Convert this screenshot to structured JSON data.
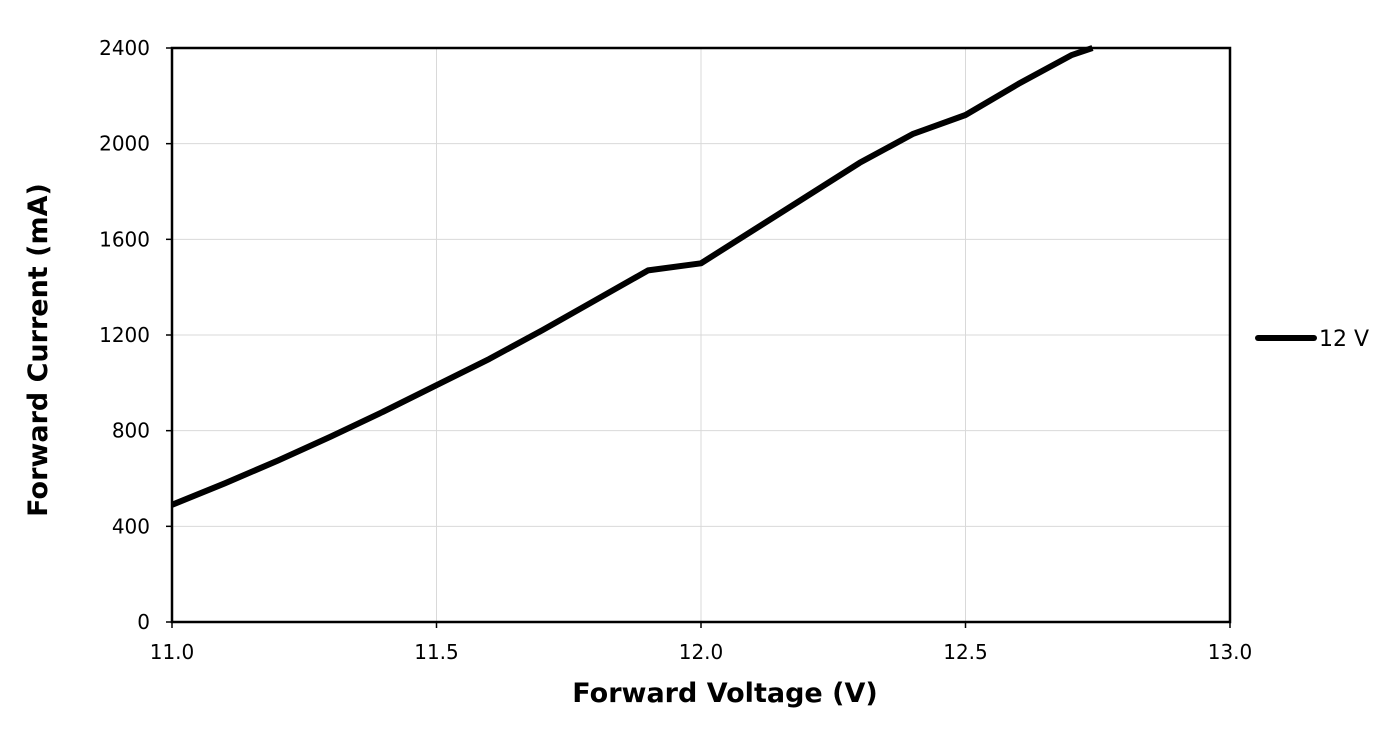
{
  "chart_data": {
    "type": "line",
    "title": "",
    "xlabel": "Forward Voltage (V)",
    "ylabel": "Forward Current (mA)",
    "xlim": [
      11.0,
      13.0
    ],
    "ylim": [
      0,
      2400
    ],
    "x_ticks": [
      11.0,
      11.5,
      12.0,
      12.5,
      13.0
    ],
    "x_tick_labels": [
      "11.0",
      "11.5",
      "12.0",
      "12.5",
      "13.0"
    ],
    "y_ticks": [
      0,
      400,
      800,
      1200,
      1600,
      2000,
      2400
    ],
    "y_tick_labels": [
      "0",
      "400",
      "800",
      "1200",
      "1600",
      "2000",
      "2400"
    ],
    "grid": true,
    "legend_position": "right",
    "colors": {
      "line": "#000000",
      "grid": "#d9d9d9",
      "frame": "#000000"
    },
    "series": [
      {
        "name": "12 V",
        "x": [
          11.0,
          11.1,
          11.2,
          11.3,
          11.4,
          11.5,
          11.6,
          11.7,
          11.8,
          11.9,
          12.0,
          12.1,
          12.2,
          12.3,
          12.4,
          12.5,
          12.6,
          12.7,
          12.74
        ],
        "y": [
          490,
          580,
          675,
          775,
          880,
          990,
          1100,
          1220,
          1345,
          1470,
          1500,
          1640,
          1780,
          1920,
          2040,
          2120,
          2250,
          2370,
          2400
        ]
      }
    ]
  }
}
